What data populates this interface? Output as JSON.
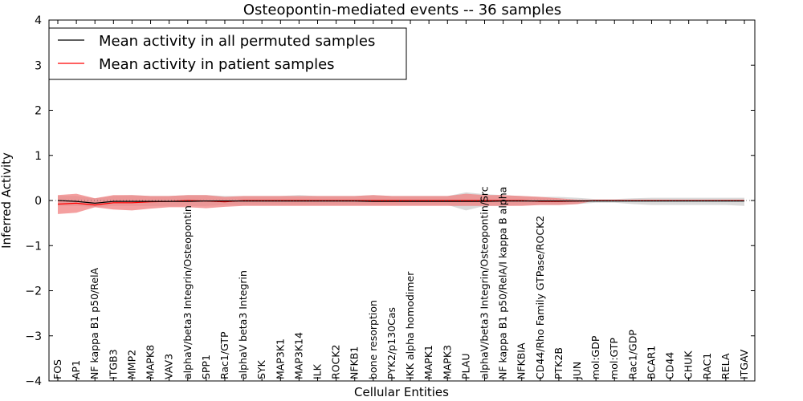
{
  "chart_data": {
    "type": "line",
    "title": "Osteopontin-mediated events -- 36 samples",
    "xlabel": "Cellular Entities",
    "ylabel": "Inferred Activity",
    "ylim": [
      -4,
      4
    ],
    "yticks": [
      -4,
      -3,
      -2,
      -1,
      0,
      1,
      2,
      3,
      4
    ],
    "ytick_labels": [
      "−4",
      "−3",
      "−2",
      "−1",
      "0",
      "1",
      "2",
      "3",
      "4"
    ],
    "categories": [
      "FOS",
      "AP1",
      "NF kappa B1 p50/RelA",
      "ITGB3",
      "MMP2",
      "MAPK8",
      "VAV3",
      "alphaV/beta3 Integrin/Osteopontin",
      "SPP1",
      "Rac1/GTP",
      "alphaV beta3 Integrin",
      "SYK",
      "MAP3K1",
      "MAP3K14",
      "ILK",
      "ROCK2",
      "NFKB1",
      "bone resorption",
      "PYK2/p130Cas",
      "IKK alpha homodimer",
      "MAPK1",
      "MAPK3",
      "PLAU",
      "alphaV/beta3 Integrin/Osteopontin/Src",
      "NF kappa B1 p50/RelA/I kappa B alpha",
      "NFKBIA",
      "CD44/Rho Family GTPase/ROCK2",
      "PTK2B",
      "JUN",
      "mol:GDP",
      "mol:GTP",
      "Rac1/GDP",
      "BCAR1",
      "CD44",
      "CHUK",
      "RAC1",
      "RELA",
      "ITGAV"
    ],
    "legend": {
      "position": "top-left",
      "entries": [
        "Mean activity in all permuted samples",
        "Mean activity in patient samples"
      ]
    },
    "series": [
      {
        "name": "Mean activity in all permuted samples",
        "color": "#000000",
        "values": [
          0.0,
          -0.02,
          -0.06,
          -0.02,
          -0.02,
          -0.02,
          -0.02,
          -0.02,
          -0.01,
          -0.01,
          -0.01,
          -0.01,
          -0.01,
          -0.01,
          -0.01,
          -0.01,
          -0.01,
          -0.02,
          -0.02,
          -0.02,
          -0.02,
          -0.02,
          -0.02,
          -0.02,
          -0.01,
          -0.01,
          -0.01,
          -0.01,
          -0.01,
          -0.01,
          -0.01,
          -0.01,
          -0.01,
          -0.01,
          -0.01,
          -0.01,
          -0.01,
          -0.01
        ],
        "lower": [
          -0.12,
          -0.12,
          -0.15,
          -0.12,
          -0.12,
          -0.12,
          -0.12,
          -0.12,
          -0.12,
          -0.1,
          -0.1,
          -0.1,
          -0.1,
          -0.1,
          -0.1,
          -0.1,
          -0.1,
          -0.1,
          -0.1,
          -0.1,
          -0.1,
          -0.1,
          -0.22,
          -0.12,
          -0.12,
          -0.1,
          -0.1,
          -0.1,
          -0.08,
          -0.05,
          -0.05,
          -0.08,
          -0.1,
          -0.1,
          -0.1,
          -0.1,
          -0.1,
          -0.12
        ],
        "upper": [
          0.1,
          0.1,
          0.05,
          0.1,
          0.12,
          0.1,
          0.1,
          0.12,
          0.12,
          0.1,
          0.1,
          0.1,
          0.1,
          0.12,
          0.1,
          0.1,
          0.1,
          0.12,
          0.1,
          0.1,
          0.1,
          0.1,
          0.18,
          0.14,
          0.12,
          0.1,
          0.08,
          0.08,
          0.06,
          0.03,
          0.03,
          0.05,
          0.06,
          0.06,
          0.06,
          0.06,
          0.06,
          0.06
        ],
        "band_color": "#bbbbbb"
      },
      {
        "name": "Mean activity in patient samples",
        "color": "#ff0000",
        "values": [
          -0.08,
          -0.06,
          -0.1,
          -0.05,
          -0.05,
          -0.03,
          -0.02,
          0.0,
          -0.01,
          -0.03,
          0.0,
          0.0,
          0.0,
          0.0,
          0.0,
          0.0,
          0.0,
          0.0,
          0.0,
          0.0,
          0.0,
          0.0,
          0.0,
          0.0,
          0.0,
          0.0,
          -0.02,
          -0.02,
          -0.01,
          0.0,
          0.0,
          0.0,
          0.0,
          0.0,
          0.0,
          0.0,
          0.0,
          0.0
        ],
        "lower": [
          -0.3,
          -0.27,
          -0.15,
          -0.2,
          -0.22,
          -0.18,
          -0.15,
          -0.15,
          -0.17,
          -0.14,
          -0.12,
          -0.12,
          -0.12,
          -0.12,
          -0.12,
          -0.12,
          -0.12,
          -0.12,
          -0.12,
          -0.12,
          -0.12,
          -0.12,
          -0.12,
          -0.12,
          -0.12,
          -0.12,
          -0.1,
          -0.1,
          -0.08,
          0.0,
          0.0,
          0.0,
          0.0,
          0.0,
          0.0,
          0.0,
          0.0,
          0.0
        ],
        "upper": [
          0.12,
          0.15,
          0.05,
          0.12,
          0.12,
          0.1,
          0.1,
          0.12,
          0.12,
          0.08,
          0.1,
          0.1,
          0.1,
          0.1,
          0.1,
          0.1,
          0.1,
          0.12,
          0.1,
          0.1,
          0.1,
          0.1,
          0.15,
          0.12,
          0.12,
          0.1,
          0.08,
          0.05,
          0.02,
          0.0,
          0.0,
          0.0,
          0.0,
          0.0,
          0.0,
          0.0,
          0.0,
          0.0
        ],
        "band_color": "#f08080"
      }
    ]
  }
}
